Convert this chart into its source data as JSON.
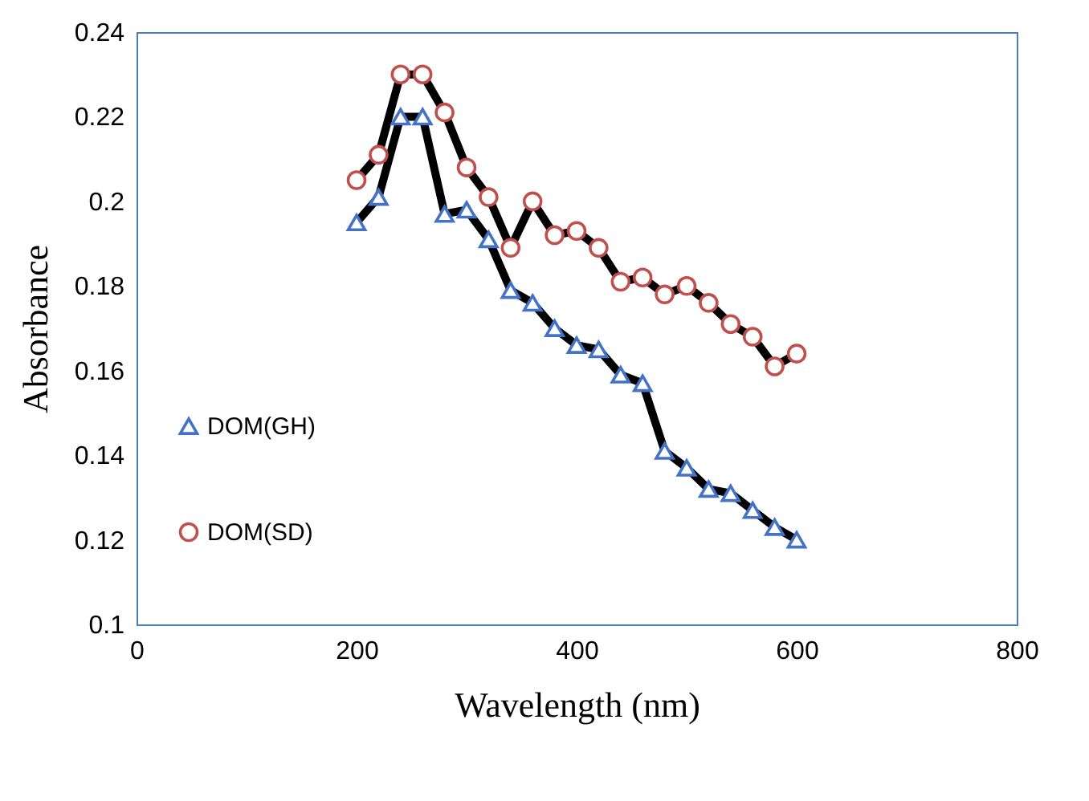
{
  "chart_data": {
    "type": "line",
    "xlabel": "Wavelength (nm)",
    "ylabel": "Absorbance",
    "x": [
      200,
      220,
      240,
      260,
      280,
      300,
      320,
      340,
      360,
      380,
      400,
      420,
      440,
      460,
      480,
      500,
      520,
      540,
      560,
      580,
      600
    ],
    "series": [
      {
        "name": "DOM(GH)",
        "color": "#4472c4",
        "marker": "triangle",
        "values": [
          0.195,
          0.201,
          0.22,
          0.22,
          0.197,
          0.198,
          0.191,
          0.179,
          0.176,
          0.17,
          0.166,
          0.165,
          0.159,
          0.157,
          0.141,
          0.137,
          0.132,
          0.131,
          0.127,
          0.123,
          0.12
        ]
      },
      {
        "name": "DOM(SD)",
        "color": "#c0504d",
        "marker": "circle",
        "values": [
          0.205,
          0.211,
          0.23,
          0.23,
          0.221,
          0.208,
          0.201,
          0.189,
          0.2,
          0.192,
          0.193,
          0.189,
          0.181,
          0.182,
          0.178,
          0.18,
          0.176,
          0.171,
          0.168,
          0.161,
          0.164
        ]
      }
    ],
    "xlim": [
      0,
      800
    ],
    "xticks": [
      0,
      200,
      400,
      600,
      800
    ],
    "ylim": [
      0.1,
      0.24
    ],
    "yticks": [
      0.1,
      0.12,
      0.14,
      0.16,
      0.18,
      0.2,
      0.22,
      0.24
    ],
    "grid": false,
    "legend": "left"
  }
}
